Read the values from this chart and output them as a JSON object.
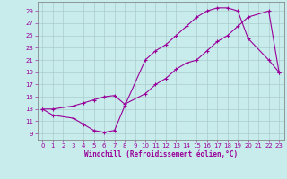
{
  "bg_color": "#c8ecec",
  "line_color": "#990099",
  "grid_color": "#aacccc",
  "xlabel": "Windchill (Refroidissement éolien,°C)",
  "xlim": [
    -0.5,
    23.5
  ],
  "ylim": [
    8.0,
    30.5
  ],
  "xticks": [
    0,
    1,
    2,
    3,
    4,
    5,
    6,
    7,
    8,
    9,
    10,
    11,
    12,
    13,
    14,
    15,
    16,
    17,
    18,
    19,
    20,
    21,
    22,
    23
  ],
  "yticks": [
    9,
    11,
    13,
    15,
    17,
    19,
    21,
    23,
    25,
    27,
    29
  ],
  "line1_x": [
    0,
    1,
    3,
    4,
    5,
    6,
    7,
    8,
    10,
    11,
    12,
    13,
    14,
    15,
    16,
    17,
    18,
    19,
    20,
    22,
    23
  ],
  "line1_y": [
    13,
    12,
    11.5,
    10.5,
    9.5,
    9.2,
    9.5,
    13.5,
    21,
    22.5,
    23.5,
    25,
    26.5,
    28,
    29,
    29.5,
    29.5,
    29,
    24.5,
    21,
    19
  ],
  "line2_x": [
    0,
    1,
    3,
    4,
    5,
    6,
    7,
    8,
    10,
    11,
    12,
    13,
    14,
    15,
    16,
    17,
    18,
    19,
    20,
    22,
    23
  ],
  "line2_y": [
    13,
    13,
    13.5,
    14,
    14.5,
    15,
    15.2,
    13.8,
    15.5,
    17,
    18,
    19.5,
    20.5,
    21,
    22.5,
    24,
    25,
    26.5,
    28,
    29,
    19
  ],
  "tick_fontsize": 5,
  "xlabel_fontsize": 5.5,
  "line_width": 0.8,
  "marker_size": 3.0,
  "marker_ew": 0.8
}
